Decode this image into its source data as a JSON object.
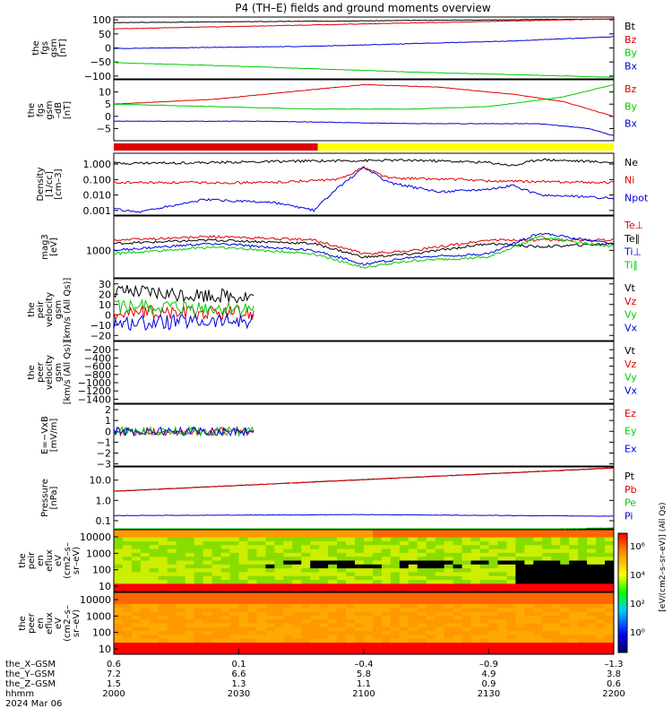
{
  "title": "P4 (TH–E) fields and ground moments overview",
  "colors": {
    "black": "#000000",
    "red": "#e00000",
    "green": "#00cc00",
    "blue": "#0000dd",
    "yellow": "#ffff00"
  },
  "x_axis": {
    "rows": [
      {
        "label": "the_X–GSM",
        "values": [
          "0.6",
          "0.1",
          "–0.4",
          "–0.9",
          "–1.3"
        ]
      },
      {
        "label": "the_Y–GSM",
        "values": [
          "7.2",
          "6.6",
          "5.8",
          "4.9",
          "3.8"
        ]
      },
      {
        "label": "the_Z–GSM",
        "values": [
          "1.5",
          "1.3",
          "1.1",
          "0.9",
          "0.6"
        ]
      },
      {
        "label": "hhmm",
        "values": [
          "2000",
          "2030",
          "2100",
          "2130",
          "2200"
        ]
      }
    ],
    "date": "2024 Mar 06"
  },
  "chart_data": [
    {
      "type": "line",
      "id": "fgs_gsm",
      "ylabel": [
        "the",
        "fgs",
        "gsm",
        "[nT]"
      ],
      "yticks": [
        "100",
        "50",
        "0",
        "−50",
        "−100"
      ],
      "ylim": [
        -110,
        110
      ],
      "series": [
        {
          "name": "Bt",
          "color": "black",
          "x": [
            0,
            1
          ],
          "values": [
            90,
            103
          ]
        },
        {
          "name": "Bz",
          "color": "red",
          "x": [
            0,
            1
          ],
          "values": [
            68,
            103
          ]
        },
        {
          "name": "By",
          "color": "green",
          "x": [
            0,
            0.3,
            0.6,
            1
          ],
          "values": [
            -52,
            -68,
            -86,
            -104
          ]
        },
        {
          "name": "Bx",
          "color": "blue",
          "x": [
            0,
            0.4,
            0.8,
            1
          ],
          "values": [
            -2,
            6,
            25,
            40
          ]
        }
      ]
    },
    {
      "type": "line",
      "id": "fgs_gsm_dtrend",
      "ylabel": [
        "the",
        "fgs",
        "gsm",
        "–dB",
        "[nT]"
      ],
      "yticks": [
        "10",
        "5",
        "0",
        "−5"
      ],
      "ylim": [
        -10,
        15
      ],
      "series": [
        {
          "name": "Bz",
          "color": "red",
          "x": [
            0,
            0.2,
            0.35,
            0.5,
            0.65,
            0.8,
            0.9,
            1
          ],
          "values": [
            5,
            7,
            10,
            13,
            12,
            9,
            6,
            0
          ]
        },
        {
          "name": "By",
          "color": "green",
          "x": [
            0,
            0.2,
            0.4,
            0.6,
            0.75,
            0.9,
            1
          ],
          "values": [
            5,
            4,
            3,
            3,
            4,
            8,
            13
          ]
        },
        {
          "name": "Bx",
          "color": "blue",
          "x": [
            0,
            0.3,
            0.6,
            0.85,
            0.95,
            1
          ],
          "values": [
            -2,
            -2,
            -3,
            -3,
            -5,
            -8
          ]
        }
      ]
    },
    {
      "type": "bar_strip",
      "id": "region_bar",
      "segments": [
        {
          "from": 0,
          "to": 0.408,
          "color": "red"
        },
        {
          "from": 0.408,
          "to": 1,
          "color": "yellow"
        }
      ]
    },
    {
      "type": "line",
      "id": "density",
      "scale": "log",
      "ylabel": [
        "Density",
        "[1/cc]",
        "[cm–3]"
      ],
      "yticks": [
        "1.000",
        "0.100",
        "0.010",
        "0.001"
      ],
      "ylim": [
        -3.3,
        0.7
      ],
      "series": [
        {
          "name": "Ne",
          "color": "black",
          "x": [
            0,
            0.2,
            0.4,
            0.6,
            0.75,
            0.8,
            0.85,
            1
          ],
          "values": [
            0.05,
            0.1,
            0.2,
            0.25,
            0.1,
            -0.1,
            0.3,
            0.1
          ]
        },
        {
          "name": "Ni",
          "color": "red",
          "x": [
            0,
            0.3,
            0.45,
            0.5,
            0.55,
            0.7,
            0.75,
            1
          ],
          "values": [
            -1.2,
            -1.2,
            -1.0,
            -0.2,
            -0.9,
            -1.0,
            -1.1,
            -1.2
          ]
        },
        {
          "name": "Npot",
          "color": "blue",
          "x": [
            0,
            0.05,
            0.18,
            0.32,
            0.4,
            0.45,
            0.5,
            0.55,
            0.65,
            0.75,
            0.8,
            0.85,
            1
          ],
          "values": [
            -2.9,
            -3.1,
            -2.3,
            -2.5,
            -3.0,
            -1.5,
            -0.2,
            -1.2,
            -1.8,
            -1.6,
            -1.4,
            -2.0,
            -2.2
          ]
        }
      ]
    },
    {
      "type": "line",
      "id": "temperature",
      "scale": "log",
      "ylabel": [
        "mag3",
        "[eV]"
      ],
      "yticks": [
        "1000"
      ],
      "ylim": [
        2.2,
        4.0
      ],
      "series": [
        {
          "name": "Te⊥",
          "color": "red",
          "x": [
            0,
            0.2,
            0.4,
            0.5,
            0.6,
            0.75,
            0.85,
            1
          ],
          "values": [
            3.3,
            3.4,
            3.3,
            2.9,
            3.0,
            3.3,
            3.3,
            3.3
          ]
        },
        {
          "name": "Te∥",
          "color": "black",
          "x": [
            0,
            0.2,
            0.4,
            0.5,
            0.6,
            0.75,
            0.85,
            1
          ],
          "values": [
            3.2,
            3.3,
            3.2,
            2.8,
            2.9,
            3.2,
            3.1,
            3.2
          ]
        },
        {
          "name": "Ti⊥",
          "color": "blue",
          "x": [
            0,
            0.2,
            0.4,
            0.5,
            0.6,
            0.75,
            0.85,
            1
          ],
          "values": [
            3.0,
            3.2,
            3.0,
            2.6,
            2.8,
            2.9,
            3.5,
            3.2
          ]
        },
        {
          "name": "Ti∥",
          "color": "green",
          "x": [
            0,
            0.2,
            0.4,
            0.5,
            0.6,
            0.75,
            0.85,
            1
          ],
          "values": [
            2.9,
            3.1,
            2.9,
            2.5,
            2.7,
            2.8,
            3.4,
            3.1
          ]
        }
      ]
    },
    {
      "type": "line",
      "id": "peir_velocity",
      "ylabel": [
        "the",
        "peir",
        "velocity",
        "gsm",
        "[km/s (All Qs)]"
      ],
      "yticks": [
        "30",
        "20",
        "10",
        "0",
        "−10",
        "−20"
      ],
      "ylim": [
        -25,
        35
      ],
      "xmax": 0.28,
      "series": [
        {
          "name": "Vt",
          "color": "black",
          "x": [
            0,
            0.28
          ],
          "values": [
            22,
            18
          ]
        },
        {
          "name": "Vz",
          "color": "red",
          "x": [
            0,
            0.28
          ],
          "values": [
            2,
            2
          ]
        },
        {
          "name": "Vy",
          "color": "green",
          "x": [
            0,
            0.28
          ],
          "values": [
            8,
            5
          ]
        },
        {
          "name": "Vx",
          "color": "blue",
          "x": [
            0,
            0.28
          ],
          "values": [
            -8,
            -6
          ]
        }
      ]
    },
    {
      "type": "line",
      "id": "peer_velocity",
      "ylabel": [
        "the",
        "peer",
        "velocity",
        "gsm",
        "[km/s (All Qs)]"
      ],
      "yticks": [
        "−200",
        "−400",
        "−600",
        "−800",
        "−1000",
        "−1200",
        "−1400"
      ],
      "ylim": [
        -1500,
        0
      ],
      "series": [
        {
          "name": "Vt",
          "color": "black",
          "x": [],
          "values": []
        },
        {
          "name": "Vz",
          "color": "red",
          "x": [],
          "values": []
        },
        {
          "name": "Vy",
          "color": "green",
          "x": [],
          "values": []
        },
        {
          "name": "Vx",
          "color": "blue",
          "x": [],
          "values": []
        }
      ]
    },
    {
      "type": "line",
      "id": "efield",
      "ylabel": [
        "E=−VxB",
        "[mV/m]"
      ],
      "yticks": [
        "2",
        "1",
        "0",
        "−1",
        "−2",
        "−3"
      ],
      "ylim": [
        -3.2,
        2.5
      ],
      "xmax": 0.28,
      "series": [
        {
          "name": "Ez",
          "color": "red",
          "x": [
            0,
            0.28
          ],
          "values": [
            0,
            0
          ]
        },
        {
          "name": "Ey",
          "color": "green",
          "x": [
            0,
            0.28
          ],
          "values": [
            0,
            0
          ]
        },
        {
          "name": "Ex",
          "color": "blue",
          "x": [
            0,
            0.28
          ],
          "values": [
            0,
            0
          ]
        }
      ]
    },
    {
      "type": "line",
      "id": "pressure",
      "scale": "log",
      "ylabel": [
        "Pressure",
        "[nPa]"
      ],
      "yticks": [
        "10.0",
        "1.0",
        "0.1"
      ],
      "ylim": [
        -1.4,
        1.65
      ],
      "series": [
        {
          "name": "Pt",
          "color": "black",
          "x": [
            0,
            1
          ],
          "values": [
            0.45,
            1.6
          ]
        },
        {
          "name": "Pb",
          "color": "red",
          "x": [
            0,
            1
          ],
          "values": [
            0.45,
            1.6
          ]
        },
        {
          "name": "Pe",
          "color": "green",
          "x": [
            0,
            0.5,
            0.8,
            1
          ],
          "values": [
            -1.7,
            -1.6,
            -1.45,
            -1.35
          ]
        },
        {
          "name": "Pi",
          "color": "blue",
          "x": [
            0,
            0.5,
            1
          ],
          "values": [
            -0.75,
            -0.7,
            -0.78
          ]
        }
      ]
    },
    {
      "type": "heatmap",
      "id": "peir_spectrogram",
      "ylabel": [
        "the",
        "peir",
        "en",
        "eflux",
        "eV",
        "(cm2–s–",
        "sr–eV)"
      ],
      "yticks": [
        "10000",
        "1000",
        "100",
        "10"
      ]
    },
    {
      "type": "heatmap",
      "id": "peer_spectrogram",
      "ylabel": [
        "the",
        "peer",
        "en",
        "eflux",
        "eV",
        "(cm2–s–",
        "sr–eV)"
      ],
      "yticks": [
        "10000",
        "1000",
        "100",
        "10"
      ]
    }
  ],
  "colorbar": {
    "ticks": [
      "10⁶",
      "10⁴",
      "10²",
      "10⁰"
    ],
    "label": "[eV/(cm2–s–sr–eV)] (All Qs)"
  }
}
